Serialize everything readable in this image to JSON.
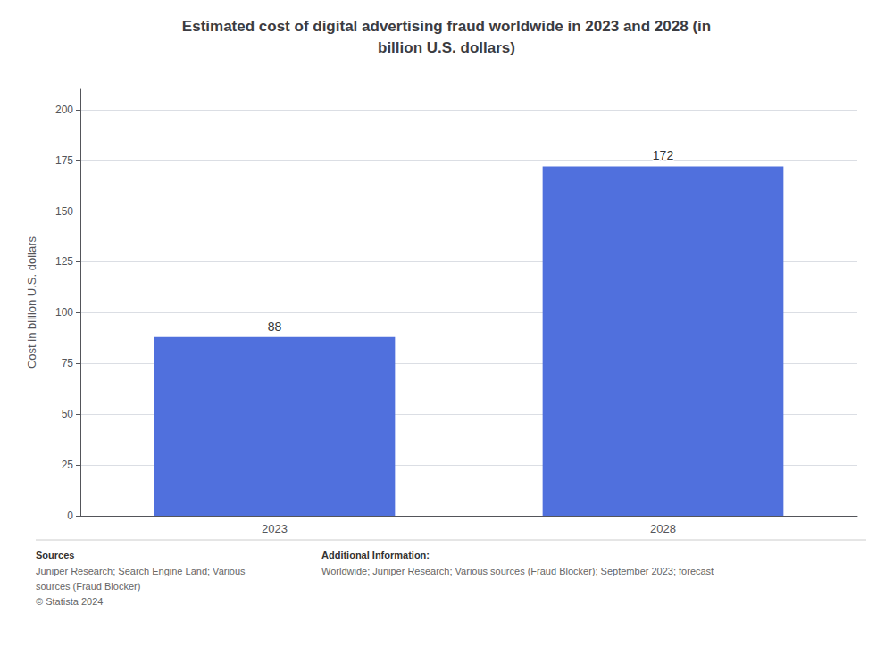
{
  "chart_data": {
    "type": "bar",
    "title": "Estimated cost of digital advertising fraud worldwide in 2023 and 2028 (in\nbillion U.S. dollars)",
    "categories": [
      "2023",
      "2028"
    ],
    "values": [
      88,
      172
    ],
    "ylabel": "Cost in billion U.S. dollars",
    "ylim": [
      0,
      210
    ],
    "yticks": [
      0,
      25,
      50,
      75,
      100,
      125,
      150,
      175,
      200
    ],
    "grid": true,
    "data_labels": true,
    "annotations": [
      "Sources",
      "Juniper Research; Search Engine Land; Various\nsources (Fraud Blocker)\n© Statista 2024",
      "Additional Information:",
      "Worldwide; Juniper Research; Various sources (Fraud Blocker); September 2023; forecast"
    ]
  }
}
